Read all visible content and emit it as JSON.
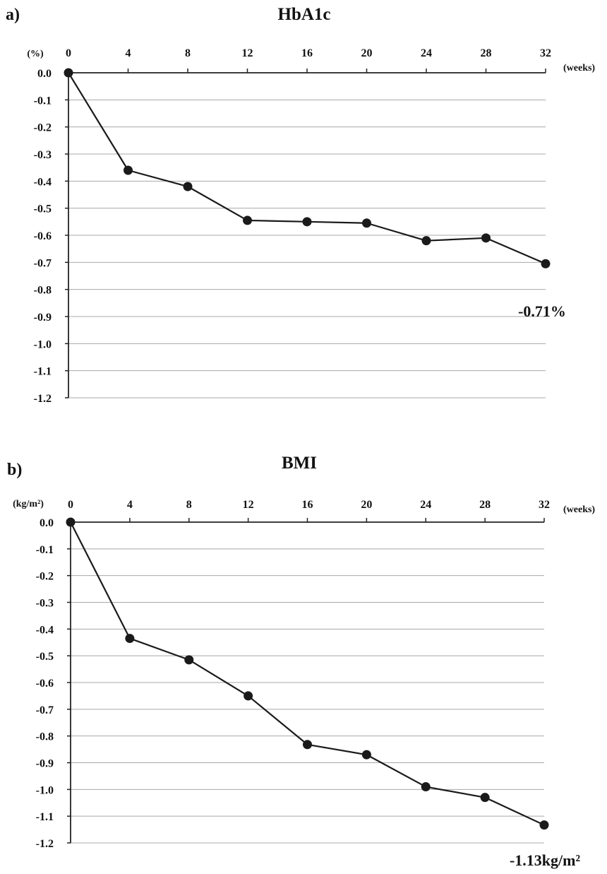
{
  "chart_data": [
    {
      "type": "line",
      "panel_label": "a)",
      "title": "HbA1c",
      "unit_label": "(%)",
      "x_unit_label": "(weeks)",
      "x": [
        0,
        4,
        8,
        12,
        16,
        20,
        24,
        28,
        32
      ],
      "x_tick_labels": [
        "0",
        "4",
        "8",
        "12",
        "16",
        "20",
        "24",
        "28",
        "32"
      ],
      "y_tick_labels": [
        "0.0",
        "-0.1",
        "-0.2",
        "-0.3",
        "-0.4",
        "-0.5",
        "-0.6",
        "-0.7",
        "-0.8",
        "-0.9",
        "-1.0",
        "-1.1",
        "-1.2"
      ],
      "series": [
        {
          "values": [
            0.0,
            -0.36,
            -0.42,
            -0.545,
            -0.55,
            -0.555,
            -0.62,
            -0.61,
            -0.705
          ]
        }
      ],
      "ylim": [
        -1.2,
        0.0
      ],
      "xlim": [
        0,
        32
      ],
      "grid": "horizontal",
      "annotation": "-0.71%"
    },
    {
      "type": "line",
      "panel_label": "b)",
      "title": "BMI",
      "unit_label": "(kg/m²)",
      "x_unit_label": "(weeks)",
      "x": [
        0,
        4,
        8,
        12,
        16,
        20,
        24,
        28,
        32
      ],
      "x_tick_labels": [
        "0",
        "4",
        "8",
        "12",
        "16",
        "20",
        "24",
        "28",
        "32"
      ],
      "y_tick_labels": [
        "0.0",
        "-0.1",
        "-0.2",
        "-0.3",
        "-0.4",
        "-0.5",
        "-0.6",
        "-0.7",
        "-0.8",
        "-0.9",
        "-1.0",
        "-1.1",
        "-1.2"
      ],
      "series": [
        {
          "values": [
            0.0,
            -0.435,
            -0.515,
            -0.65,
            -0.832,
            -0.87,
            -0.99,
            -1.03,
            -1.133
          ]
        }
      ],
      "ylim": [
        -1.2,
        0.0
      ],
      "xlim": [
        0,
        32
      ],
      "grid": "horizontal",
      "annotation": "-1.13kg/m²"
    }
  ]
}
